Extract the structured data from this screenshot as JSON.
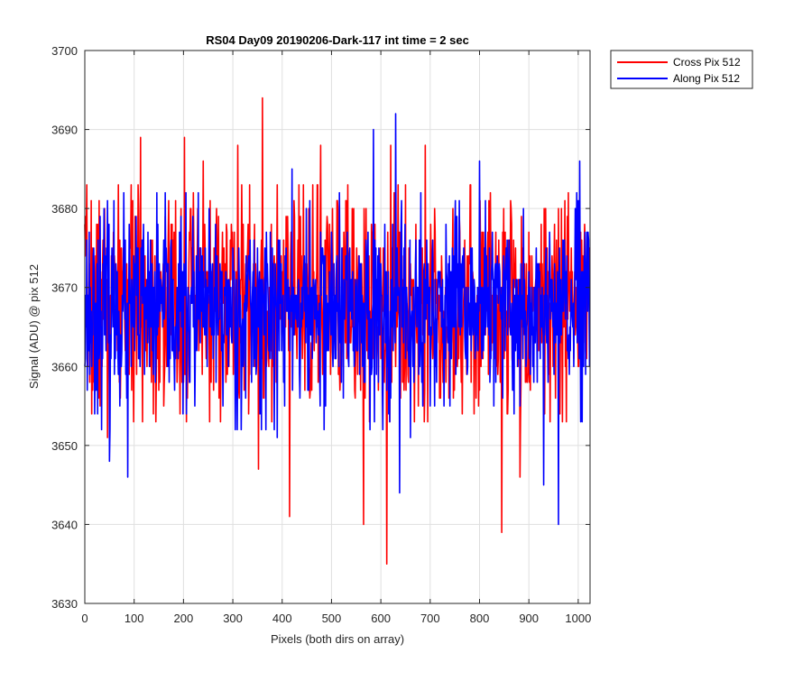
{
  "chart_data": {
    "type": "line",
    "title": "RS04 Day09 20190206-Dark-117 int time = 2 sec",
    "xlabel": "Pixels (both dirs on array)",
    "ylabel": "Signal (ADU) @ pix 512",
    "xlim": [
      0,
      1024
    ],
    "ylim": [
      3630,
      3700
    ],
    "xticks": [
      0,
      100,
      200,
      300,
      400,
      500,
      600,
      700,
      800,
      900,
      1000
    ],
    "yticks": [
      3630,
      3640,
      3650,
      3660,
      3670,
      3680,
      3690,
      3700
    ],
    "grid": true,
    "legend_position": "outside-top-right",
    "n_points": 1024,
    "series": [
      {
        "name": "Cross Pix 512",
        "color": "#ff0000",
        "baseline": 3668,
        "spread": 7,
        "seed": 7,
        "peaks": [
          {
            "x": 113,
            "y": 3689
          },
          {
            "x": 202,
            "y": 3689
          },
          {
            "x": 240,
            "y": 3686
          },
          {
            "x": 310,
            "y": 3688
          },
          {
            "x": 360,
            "y": 3694
          },
          {
            "x": 415,
            "y": 3641
          },
          {
            "x": 478,
            "y": 3688
          },
          {
            "x": 565,
            "y": 3640
          },
          {
            "x": 612,
            "y": 3635
          },
          {
            "x": 620,
            "y": 3688
          },
          {
            "x": 690,
            "y": 3688
          },
          {
            "x": 845,
            "y": 3639
          },
          {
            "x": 352,
            "y": 3647
          },
          {
            "x": 46,
            "y": 3651
          },
          {
            "x": 882,
            "y": 3646
          }
        ]
      },
      {
        "name": "Along Pix 512",
        "color": "#0000ff",
        "baseline": 3667,
        "spread": 6,
        "seed": 23,
        "peaks": [
          {
            "x": 87,
            "y": 3646
          },
          {
            "x": 50,
            "y": 3648
          },
          {
            "x": 585,
            "y": 3690
          },
          {
            "x": 630,
            "y": 3692
          },
          {
            "x": 638,
            "y": 3644
          },
          {
            "x": 960,
            "y": 3640
          },
          {
            "x": 1003,
            "y": 3686
          },
          {
            "x": 660,
            "y": 3651
          },
          {
            "x": 930,
            "y": 3645
          },
          {
            "x": 420,
            "y": 3685
          },
          {
            "x": 390,
            "y": 3651
          },
          {
            "x": 800,
            "y": 3686
          }
        ]
      }
    ]
  }
}
